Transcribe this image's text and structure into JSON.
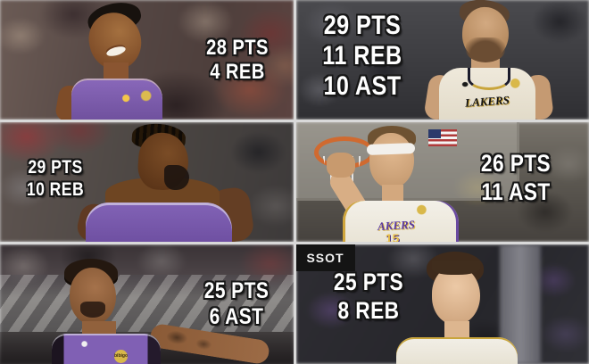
{
  "panels": [
    {
      "position": "top-left",
      "stats": [
        "28 PTS",
        "4 REB"
      ]
    },
    {
      "position": "top-right",
      "stats": [
        "29 PTS",
        "11 REB",
        "10 AST"
      ],
      "jersey_text": "LAKERS"
    },
    {
      "position": "middle-left",
      "stats": [
        "29 PTS",
        "10 REB"
      ]
    },
    {
      "position": "middle-right",
      "stats": [
        "26 PTS",
        "11 AST"
      ],
      "jersey_text": "AKERS",
      "jersey_number": "15"
    },
    {
      "position": "bottom-left",
      "stats": [
        "25 PTS",
        "6 AST"
      ],
      "sponsor_patch_text": "bibigo"
    },
    {
      "position": "bottom-right",
      "stats": [
        "25 PTS",
        "8 REB"
      ],
      "arena_sign_text": "SSOT"
    }
  ],
  "colors": {
    "stat_text": "#ffffff",
    "stat_outline": "#161616",
    "lakers_purple": "#7e60b2",
    "lakers_gold": "#e8bf4a",
    "cream_jersey": "#efe9db",
    "gutter": "#d9d9d9"
  }
}
